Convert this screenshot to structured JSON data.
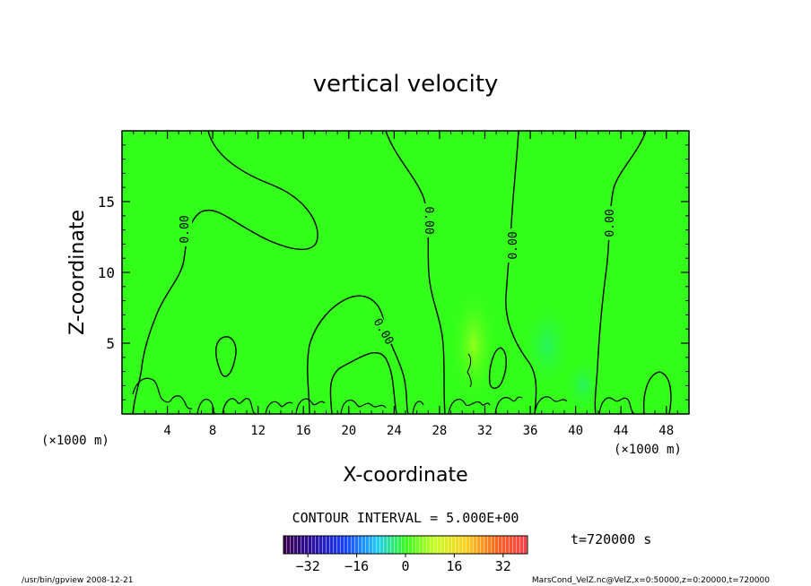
{
  "chart_data": {
    "type": "heatmap",
    "title": "vertical velocity",
    "xlabel": "X-coordinate",
    "ylabel": "Z-coordinate",
    "x_unit": "(×1000 m)",
    "x_unit_right": "(×1000 m)",
    "xlim": [
      0,
      50
    ],
    "ylim": [
      0,
      20
    ],
    "x_ticks": [
      4,
      8,
      12,
      16,
      20,
      24,
      28,
      32,
      36,
      40,
      44,
      48
    ],
    "y_ticks": [
      5,
      10,
      15
    ],
    "contour_interval_text": "CONTOUR INTERVAL = 5.000E+00",
    "contour_level_label": "0.00",
    "contour_label_positions": [
      {
        "x": 5.5,
        "z": 12.8
      },
      {
        "x": 27.1,
        "z": 13.5
      },
      {
        "x": 34.5,
        "z": 11.8
      },
      {
        "x": 42.4,
        "z": 13.0
      },
      {
        "x": 22.6,
        "z": 5.8
      }
    ],
    "background_value": 0,
    "colorbar": {
      "min": -40,
      "max": 40,
      "ticks": [
        -32,
        -16,
        0,
        16,
        32
      ],
      "tick_labels": [
        "−32",
        "−16",
        "0",
        "16",
        "32"
      ],
      "colormap": "rainbow (purple-blue-cyan-green-yellow-red)"
    },
    "time_label": "t=720000 s",
    "grid": false
  },
  "footer": {
    "left": "/usr/bin/gpview  2008-12-21",
    "right": "MarsCond_VelZ.nc@VelZ,x=0:50000,z=0:20000,t=720000"
  },
  "colors": {
    "field_green": "#33ff1a",
    "contour": "#000000"
  }
}
